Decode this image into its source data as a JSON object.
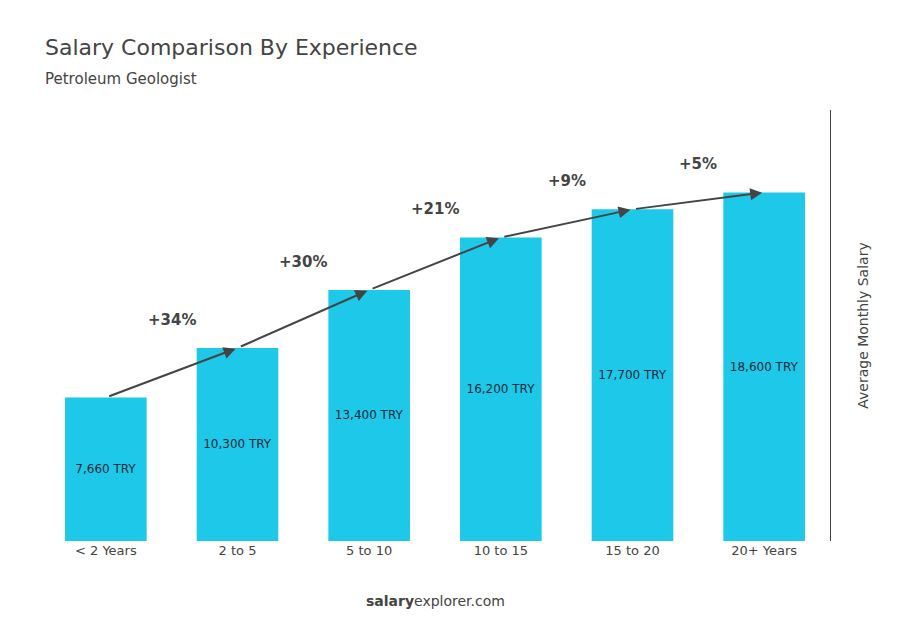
{
  "chart_data": {
    "type": "bar",
    "title": "Salary Comparison By Experience",
    "subtitle": "Petroleum Geologist",
    "categories": [
      "< 2 Years",
      "2 to 5",
      "5 to 10",
      "10 to 15",
      "15 to 20",
      "20+ Years"
    ],
    "values": [
      7660,
      10300,
      13400,
      16200,
      17700,
      18600
    ],
    "value_labels": [
      "7,660 TRY",
      "10,300 TRY",
      "13,400 TRY",
      "16,200 TRY",
      "17,700 TRY",
      "18,600 TRY"
    ],
    "data_labels": true,
    "annotations": [
      "+34%",
      "+30%",
      "+21%",
      "+9%",
      "+5%"
    ],
    "ylabel": "Average Monthly Salary",
    "footer": [
      "salary",
      "explorer.com"
    ],
    "color": "#1ec8e8",
    "ylim": [
      0,
      23000
    ],
    "yticks": [],
    "tick_labels": "x",
    "grid": false
  }
}
